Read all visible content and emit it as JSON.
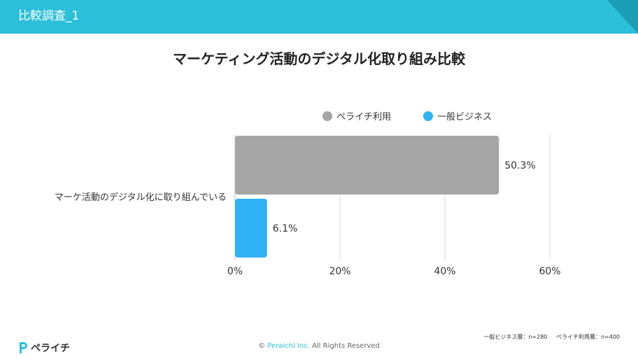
{
  "header": {
    "title": "比較調査_1"
  },
  "chart_data": {
    "type": "bar",
    "orientation": "horizontal",
    "title": "マーケティング活動のデジタル化取り組み比較",
    "categories": [
      "マーケ活動のデジタル化に取り組んでいる"
    ],
    "series": [
      {
        "name": "ペライチ利用",
        "values": [
          50.3
        ],
        "color": "#a6a6a6",
        "label": "50.3%"
      },
      {
        "name": "一般ビジネス",
        "values": [
          6.1
        ],
        "color": "#2fb1f5",
        "label": "6.1%"
      }
    ],
    "xlim": [
      0,
      60
    ],
    "xticks": [
      {
        "value": 0,
        "label": "0%"
      },
      {
        "value": 20,
        "label": "20%"
      },
      {
        "value": 40,
        "label": "40%"
      },
      {
        "value": 60,
        "label": "60%"
      }
    ],
    "grid": true,
    "legend_position": "top-right"
  },
  "footnote": {
    "general": "一般ビジネス層：n=280",
    "peraichi": "ペライチ利用層：n=400"
  },
  "footer": {
    "logo_text": "ペライチ",
    "copyright_symbol": "©",
    "company": "Peraichi Inc.",
    "rights": "All Rights Reserved"
  }
}
